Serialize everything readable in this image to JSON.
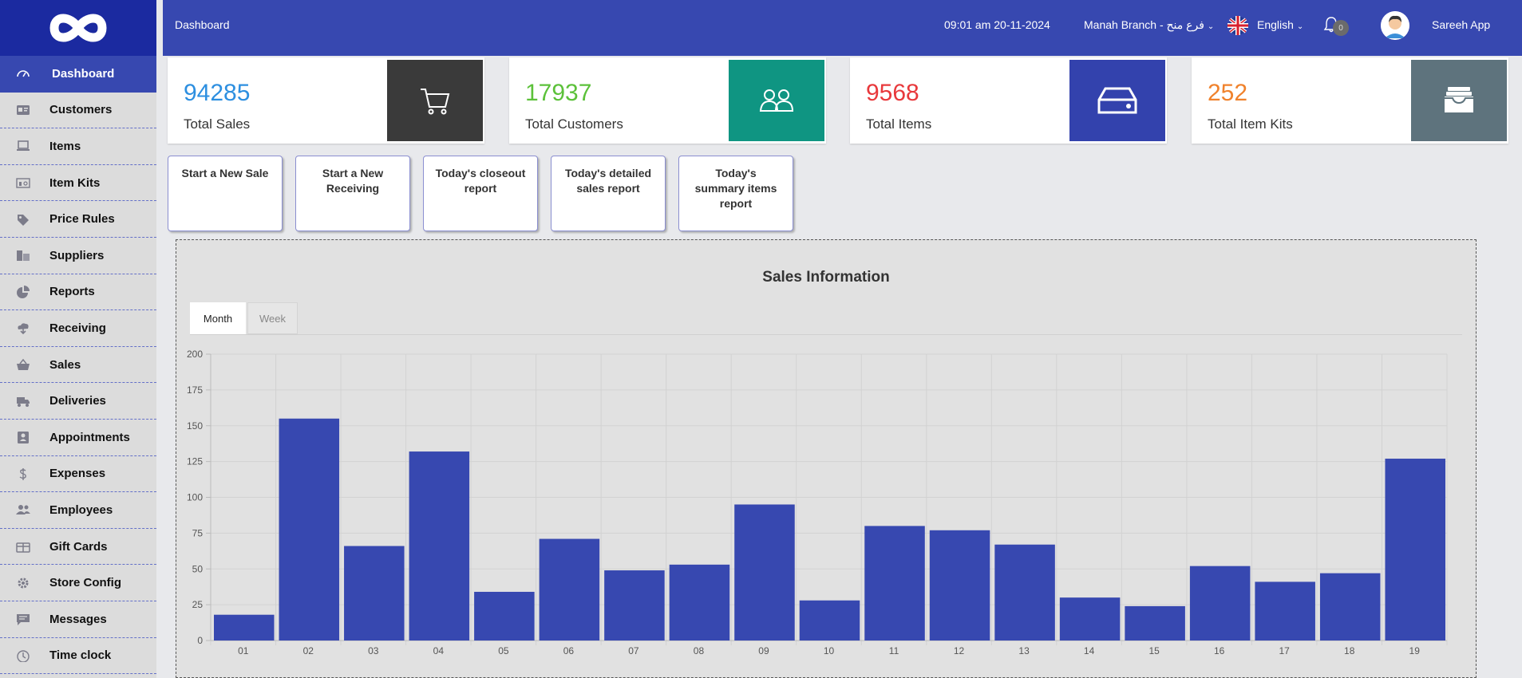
{
  "sidebar": {
    "logo_icon": "infinity-logo-icon",
    "items": [
      {
        "label": "Dashboard",
        "icon": "dashboard-gauge-icon",
        "active": true
      },
      {
        "label": "Customers",
        "icon": "id-card-icon"
      },
      {
        "label": "Items",
        "icon": "laptop-icon"
      },
      {
        "label": "Item Kits",
        "icon": "kit-icon"
      },
      {
        "label": "Price Rules",
        "icon": "tag-icon"
      },
      {
        "label": "Suppliers",
        "icon": "building-icon"
      },
      {
        "label": "Reports",
        "icon": "pie-chart-icon"
      },
      {
        "label": "Receiving",
        "icon": "cloud-download-icon"
      },
      {
        "label": "Sales",
        "icon": "basket-icon"
      },
      {
        "label": "Deliveries",
        "icon": "truck-icon"
      },
      {
        "label": "Appointments",
        "icon": "contact-icon"
      },
      {
        "label": "Expenses",
        "icon": "dollar-icon"
      },
      {
        "label": "Employees",
        "icon": "users-icon"
      },
      {
        "label": "Gift Cards",
        "icon": "gift-card-icon"
      },
      {
        "label": "Store Config",
        "icon": "gear-icon"
      },
      {
        "label": "Messages",
        "icon": "chat-icon"
      },
      {
        "label": "Time clock",
        "icon": "clock-icon"
      }
    ]
  },
  "topbar": {
    "breadcrumb": "Dashboard",
    "datetime": "09:01 am 20-11-2024",
    "branch": "Manah Branch - فرع منح",
    "language": "English",
    "notifications_count": "0",
    "user_name": "Sareeh App"
  },
  "stats": [
    {
      "value": "94285",
      "label": "Total Sales",
      "color": "#2d8fe0",
      "icon_bg": "#3a3a3a",
      "icon": "cart-icon"
    },
    {
      "value": "17937",
      "label": "Total Customers",
      "color": "#5cc13a",
      "icon_bg": "#0f9582",
      "icon": "users-icon"
    },
    {
      "value": "9568",
      "label": "Total Items",
      "color": "#e8393c",
      "icon_bg": "#3342ad",
      "icon": "hard-drive-icon"
    },
    {
      "value": "252",
      "label": "Total Item Kits",
      "color": "#f0822c",
      "icon_bg": "#5e737d",
      "icon": "inbox-icon"
    }
  ],
  "quick_actions": [
    "Start a New Sale",
    "Start a New Receiving",
    "Today's closeout report",
    "Today's detailed sales report",
    "Today's summary items report"
  ],
  "sales_panel": {
    "title": "Sales Information",
    "tabs": [
      {
        "label": "Month",
        "active": true
      },
      {
        "label": "Week",
        "active": false
      }
    ]
  },
  "chart_data": {
    "type": "bar",
    "title": "",
    "xlabel": "",
    "ylabel": "",
    "categories": [
      "01",
      "02",
      "03",
      "04",
      "05",
      "06",
      "07",
      "08",
      "09",
      "10",
      "11",
      "12",
      "13",
      "14",
      "15",
      "16",
      "17",
      "18",
      "19"
    ],
    "values": [
      18,
      155,
      66,
      132,
      34,
      71,
      49,
      53,
      95,
      28,
      80,
      77,
      67,
      30,
      24,
      52,
      41,
      47,
      127
    ],
    "ylim": [
      0,
      200
    ],
    "yticks": [
      0,
      25,
      50,
      75,
      100,
      125,
      150,
      175,
      200
    ],
    "grid": true,
    "bar_color": "#3748b0"
  }
}
